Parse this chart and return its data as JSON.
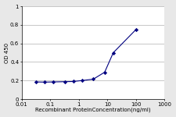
{
  "x": [
    0.032,
    0.064,
    0.128,
    0.32,
    0.64,
    1.28,
    3.2,
    8.0,
    16.0,
    100.0
  ],
  "y": [
    0.185,
    0.183,
    0.185,
    0.188,
    0.19,
    0.2,
    0.215,
    0.29,
    0.5,
    0.75
  ],
  "xlim": [
    0.01,
    1000
  ],
  "ylim": [
    0,
    1.0
  ],
  "yticks": [
    0,
    0.2,
    0.4,
    0.6,
    0.8,
    1.0
  ],
  "ytick_labels": [
    "0",
    "0.2",
    "0.4",
    "0.6",
    "0.8",
    "1"
  ],
  "xticks": [
    0.01,
    0.1,
    1,
    10,
    100,
    1000
  ],
  "xtick_labels": [
    "0.01",
    "0.1",
    "1",
    "10",
    "100",
    "1000"
  ],
  "xlabel": "Recombinant ProteinConcentration(ng/ml)",
  "ylabel": "OD 450",
  "line_color": "#000080",
  "marker": "D",
  "marker_size": 2.2,
  "line_width": 0.8,
  "bg_color": "#e8e8e8",
  "plot_bg": "#ffffff",
  "grid_color": "#b0b0b0",
  "label_fontsize": 5.0,
  "tick_fontsize": 5.0
}
